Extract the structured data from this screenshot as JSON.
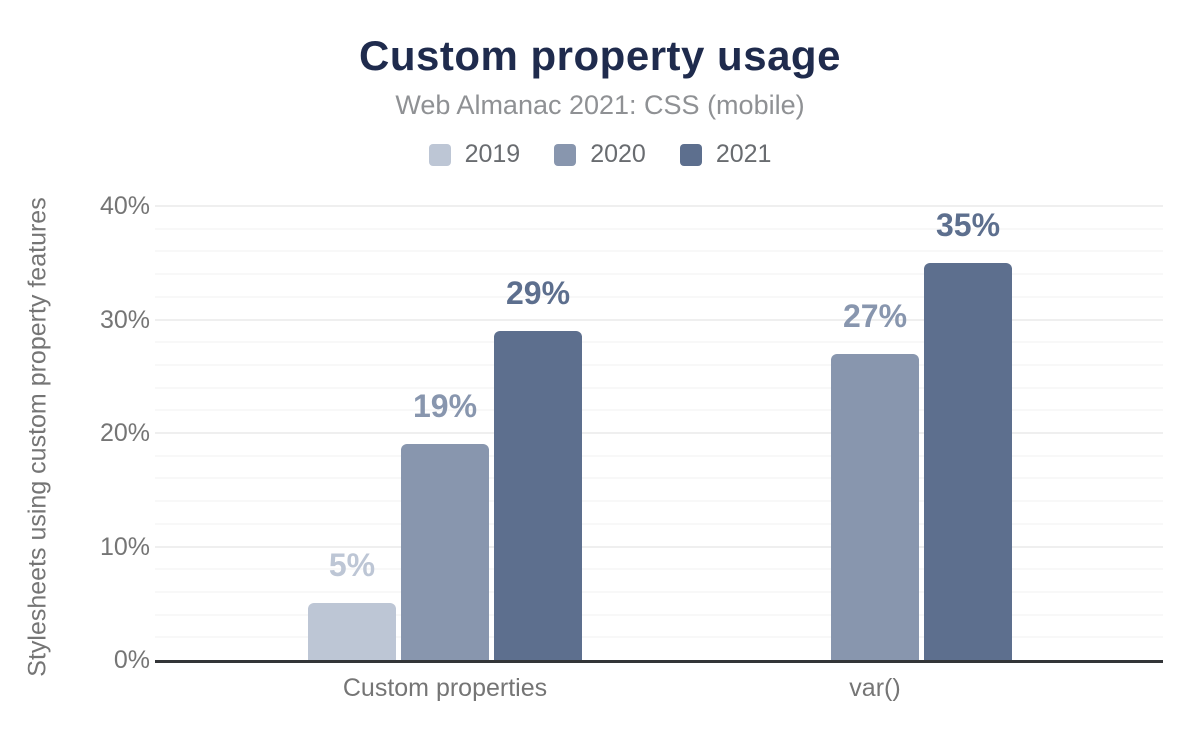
{
  "chart_data": {
    "type": "bar",
    "title": "Custom property usage",
    "subtitle": "Web Almanac 2021: CSS (mobile)",
    "categories": [
      "Custom properties",
      "var()"
    ],
    "series": [
      {
        "name": "2019",
        "color": "#bdc6d5",
        "values": [
          5,
          null
        ],
        "labels": [
          "5%",
          null
        ]
      },
      {
        "name": "2020",
        "color": "#8896ae",
        "values": [
          19,
          27
        ],
        "labels": [
          "19%",
          "27%"
        ]
      },
      {
        "name": "2021",
        "color": "#5d6f8e",
        "values": [
          29,
          35
        ],
        "labels": [
          "29%",
          "35%"
        ]
      }
    ],
    "ylabel": "Stylesheets using custom property features",
    "ylim": [
      0,
      40
    ],
    "yticks": [
      "0%",
      "10%",
      "20%",
      "30%",
      "40%"
    ],
    "ytick_values": [
      0,
      10,
      20,
      30,
      40
    ],
    "minor_grid_step_pct": 2,
    "grid": "horizontal gridlines, minor every 2%, major every 10%",
    "legend_position": "top-center",
    "colors": {
      "title": "#1f2b4d",
      "subtitle": "#8f9194",
      "axis_text": "#757575",
      "legend_text": "#696c70",
      "gridline_minor": "#f8f8f8",
      "gridline_major": "#efefef",
      "axis_line": "#333538",
      "background": "#ffffff"
    }
  }
}
